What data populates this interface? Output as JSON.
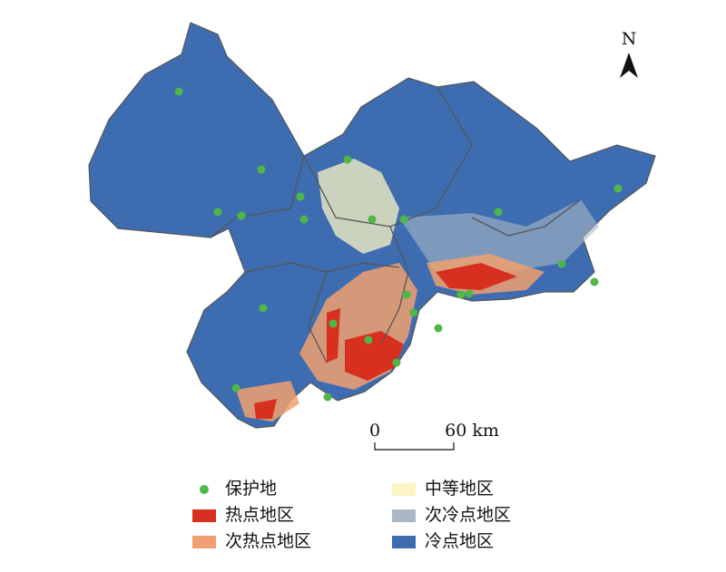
{
  "north_label": "N",
  "scale_bar": {
    "start": "0",
    "end": "60 km"
  },
  "legend": [
    {
      "label": "保护地",
      "color": "#4db848",
      "shape": "dot"
    },
    {
      "label": "热点地区",
      "color": "#d7301f",
      "shape": "box"
    },
    {
      "label": "次热点地区",
      "color": "#f0a070",
      "shape": "box"
    },
    {
      "label": "中等地区",
      "color": "#fbf6c4",
      "shape": "box"
    },
    {
      "label": "次冷点地区",
      "color": "#a9b8c4",
      "shape": "box"
    },
    {
      "label": "冷点地区",
      "color": "#3d6db0",
      "shape": "box"
    }
  ]
}
